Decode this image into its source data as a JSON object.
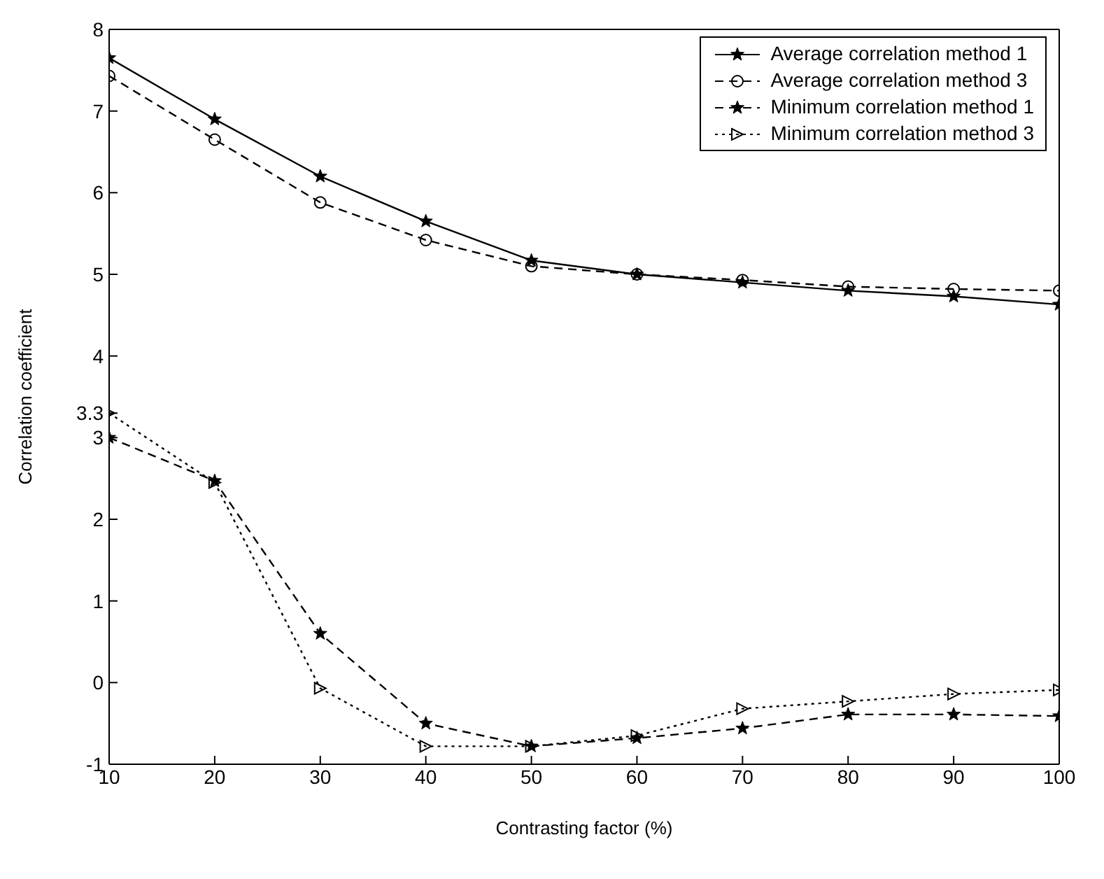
{
  "chart_data": {
    "type": "line",
    "xlabel": "Contrasting factor (%)",
    "ylabel": "Correlation coefficient",
    "x": [
      10,
      20,
      30,
      40,
      50,
      60,
      70,
      80,
      90,
      100
    ],
    "series": [
      {
        "name": "Average correlation method 1",
        "color": "#000000",
        "marker": "star",
        "line_style": "solid",
        "values": [
          7.65,
          6.9,
          6.2,
          5.65,
          5.17,
          5.0,
          4.9,
          4.8,
          4.73,
          4.63
        ]
      },
      {
        "name": "Average correlation method 3",
        "color": "#000000",
        "marker": "circle",
        "line_style": "dashed",
        "values": [
          7.43,
          6.65,
          5.88,
          5.42,
          5.1,
          5.0,
          4.93,
          4.85,
          4.82,
          4.8
        ]
      },
      {
        "name": "Minimum correlation method 1",
        "color": "#000000",
        "marker": "star",
        "line_style": "dashed",
        "values": [
          3.0,
          2.47,
          0.6,
          -0.5,
          -0.78,
          -0.68,
          -0.56,
          -0.39,
          -0.39,
          -0.41
        ]
      },
      {
        "name": "Minimum correlation method 3",
        "color": "#000000",
        "marker": "triangle",
        "line_style": "dotted",
        "values": [
          3.3,
          2.45,
          -0.07,
          -0.78,
          -0.78,
          -0.65,
          -0.32,
          -0.23,
          -0.14,
          -0.09
        ]
      }
    ],
    "xlim": [
      10,
      100
    ],
    "xticks": [
      10,
      20,
      30,
      40,
      50,
      60,
      70,
      80,
      90,
      100
    ],
    "ylim": [
      -1,
      8
    ],
    "yticks": [
      -1,
      0,
      1,
      2,
      3,
      3.3,
      4,
      5,
      6,
      7,
      8
    ],
    "grid": false,
    "legend": "top right"
  }
}
